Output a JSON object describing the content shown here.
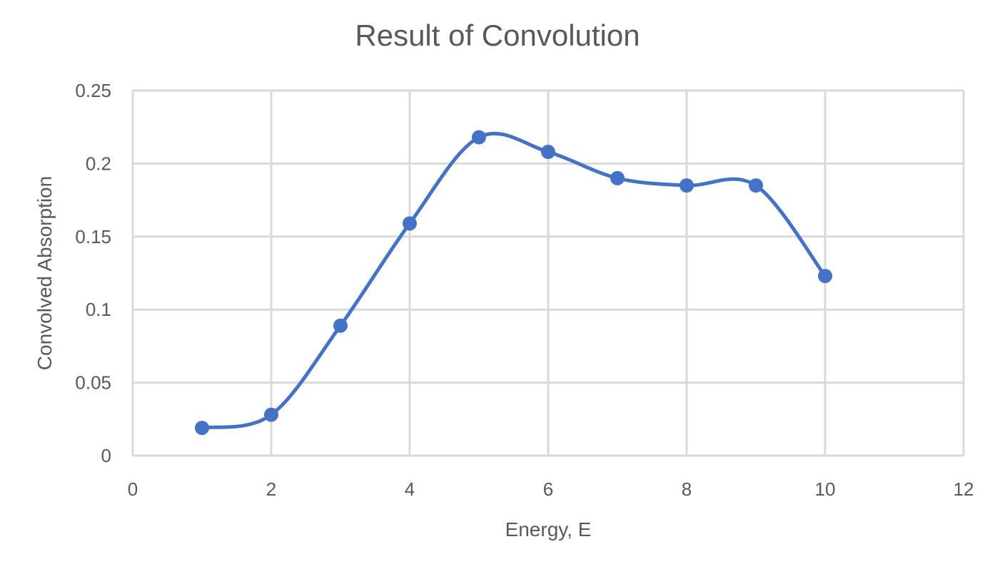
{
  "chart_data": {
    "type": "scatter",
    "title": "Result of Convolution",
    "xlabel": "Energy, E",
    "ylabel": "Convolved Absorption",
    "xlim": [
      0,
      12
    ],
    "ylim": [
      0,
      0.25
    ],
    "x_ticks": [
      0,
      2,
      4,
      6,
      8,
      10,
      12
    ],
    "x_tick_labels": [
      "0",
      "2",
      "4",
      "6",
      "8",
      "10",
      "12"
    ],
    "y_ticks": [
      0,
      0.05,
      0.1,
      0.15,
      0.2,
      0.25
    ],
    "y_tick_labels": [
      "0",
      "0.05",
      "0.1",
      "0.15",
      "0.2",
      "0.25"
    ],
    "grid": true,
    "smooth": true,
    "series": [
      {
        "color": "#4472c4",
        "points": [
          {
            "x": 1,
            "y": 0.019
          },
          {
            "x": 2,
            "y": 0.028
          },
          {
            "x": 3,
            "y": 0.089
          },
          {
            "x": 4,
            "y": 0.159
          },
          {
            "x": 5,
            "y": 0.218
          },
          {
            "x": 6,
            "y": 0.208
          },
          {
            "x": 7,
            "y": 0.19
          },
          {
            "x": 8,
            "y": 0.185
          },
          {
            "x": 9,
            "y": 0.185
          },
          {
            "x": 10,
            "y": 0.123
          }
        ]
      }
    ]
  }
}
